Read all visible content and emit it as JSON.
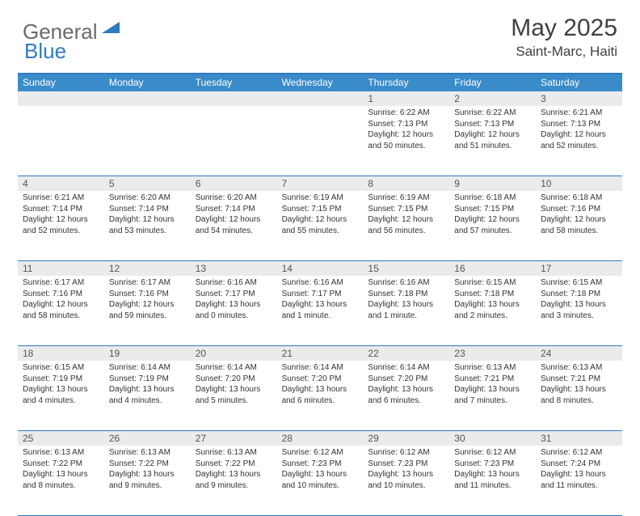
{
  "logo": {
    "general": "General",
    "blue": "Blue"
  },
  "title": "May 2025",
  "location": "Saint-Marc, Haiti",
  "colors": {
    "header_bg": "#3a8bc9",
    "border": "#2f7bbf",
    "daynum_bg": "#ebebeb",
    "text": "#333333"
  },
  "day_names": [
    "Sunday",
    "Monday",
    "Tuesday",
    "Wednesday",
    "Thursday",
    "Friday",
    "Saturday"
  ],
  "weeks": [
    [
      {
        "day": "",
        "lines": [
          "",
          "",
          "",
          ""
        ]
      },
      {
        "day": "",
        "lines": [
          "",
          "",
          "",
          ""
        ]
      },
      {
        "day": "",
        "lines": [
          "",
          "",
          "",
          ""
        ]
      },
      {
        "day": "",
        "lines": [
          "",
          "",
          "",
          ""
        ]
      },
      {
        "day": "1",
        "lines": [
          "Sunrise: 6:22 AM",
          "Sunset: 7:13 PM",
          "Daylight: 12 hours",
          "and 50 minutes."
        ]
      },
      {
        "day": "2",
        "lines": [
          "Sunrise: 6:22 AM",
          "Sunset: 7:13 PM",
          "Daylight: 12 hours",
          "and 51 minutes."
        ]
      },
      {
        "day": "3",
        "lines": [
          "Sunrise: 6:21 AM",
          "Sunset: 7:13 PM",
          "Daylight: 12 hours",
          "and 52 minutes."
        ]
      }
    ],
    [
      {
        "day": "4",
        "lines": [
          "Sunrise: 6:21 AM",
          "Sunset: 7:14 PM",
          "Daylight: 12 hours",
          "and 52 minutes."
        ]
      },
      {
        "day": "5",
        "lines": [
          "Sunrise: 6:20 AM",
          "Sunset: 7:14 PM",
          "Daylight: 12 hours",
          "and 53 minutes."
        ]
      },
      {
        "day": "6",
        "lines": [
          "Sunrise: 6:20 AM",
          "Sunset: 7:14 PM",
          "Daylight: 12 hours",
          "and 54 minutes."
        ]
      },
      {
        "day": "7",
        "lines": [
          "Sunrise: 6:19 AM",
          "Sunset: 7:15 PM",
          "Daylight: 12 hours",
          "and 55 minutes."
        ]
      },
      {
        "day": "8",
        "lines": [
          "Sunrise: 6:19 AM",
          "Sunset: 7:15 PM",
          "Daylight: 12 hours",
          "and 56 minutes."
        ]
      },
      {
        "day": "9",
        "lines": [
          "Sunrise: 6:18 AM",
          "Sunset: 7:15 PM",
          "Daylight: 12 hours",
          "and 57 minutes."
        ]
      },
      {
        "day": "10",
        "lines": [
          "Sunrise: 6:18 AM",
          "Sunset: 7:16 PM",
          "Daylight: 12 hours",
          "and 58 minutes."
        ]
      }
    ],
    [
      {
        "day": "11",
        "lines": [
          "Sunrise: 6:17 AM",
          "Sunset: 7:16 PM",
          "Daylight: 12 hours",
          "and 58 minutes."
        ]
      },
      {
        "day": "12",
        "lines": [
          "Sunrise: 6:17 AM",
          "Sunset: 7:16 PM",
          "Daylight: 12 hours",
          "and 59 minutes."
        ]
      },
      {
        "day": "13",
        "lines": [
          "Sunrise: 6:16 AM",
          "Sunset: 7:17 PM",
          "Daylight: 13 hours",
          "and 0 minutes."
        ]
      },
      {
        "day": "14",
        "lines": [
          "Sunrise: 6:16 AM",
          "Sunset: 7:17 PM",
          "Daylight: 13 hours",
          "and 1 minute."
        ]
      },
      {
        "day": "15",
        "lines": [
          "Sunrise: 6:16 AM",
          "Sunset: 7:18 PM",
          "Daylight: 13 hours",
          "and 1 minute."
        ]
      },
      {
        "day": "16",
        "lines": [
          "Sunrise: 6:15 AM",
          "Sunset: 7:18 PM",
          "Daylight: 13 hours",
          "and 2 minutes."
        ]
      },
      {
        "day": "17",
        "lines": [
          "Sunrise: 6:15 AM",
          "Sunset: 7:18 PM",
          "Daylight: 13 hours",
          "and 3 minutes."
        ]
      }
    ],
    [
      {
        "day": "18",
        "lines": [
          "Sunrise: 6:15 AM",
          "Sunset: 7:19 PM",
          "Daylight: 13 hours",
          "and 4 minutes."
        ]
      },
      {
        "day": "19",
        "lines": [
          "Sunrise: 6:14 AM",
          "Sunset: 7:19 PM",
          "Daylight: 13 hours",
          "and 4 minutes."
        ]
      },
      {
        "day": "20",
        "lines": [
          "Sunrise: 6:14 AM",
          "Sunset: 7:20 PM",
          "Daylight: 13 hours",
          "and 5 minutes."
        ]
      },
      {
        "day": "21",
        "lines": [
          "Sunrise: 6:14 AM",
          "Sunset: 7:20 PM",
          "Daylight: 13 hours",
          "and 6 minutes."
        ]
      },
      {
        "day": "22",
        "lines": [
          "Sunrise: 6:14 AM",
          "Sunset: 7:20 PM",
          "Daylight: 13 hours",
          "and 6 minutes."
        ]
      },
      {
        "day": "23",
        "lines": [
          "Sunrise: 6:13 AM",
          "Sunset: 7:21 PM",
          "Daylight: 13 hours",
          "and 7 minutes."
        ]
      },
      {
        "day": "24",
        "lines": [
          "Sunrise: 6:13 AM",
          "Sunset: 7:21 PM",
          "Daylight: 13 hours",
          "and 8 minutes."
        ]
      }
    ],
    [
      {
        "day": "25",
        "lines": [
          "Sunrise: 6:13 AM",
          "Sunset: 7:22 PM",
          "Daylight: 13 hours",
          "and 8 minutes."
        ]
      },
      {
        "day": "26",
        "lines": [
          "Sunrise: 6:13 AM",
          "Sunset: 7:22 PM",
          "Daylight: 13 hours",
          "and 9 minutes."
        ]
      },
      {
        "day": "27",
        "lines": [
          "Sunrise: 6:13 AM",
          "Sunset: 7:22 PM",
          "Daylight: 13 hours",
          "and 9 minutes."
        ]
      },
      {
        "day": "28",
        "lines": [
          "Sunrise: 6:12 AM",
          "Sunset: 7:23 PM",
          "Daylight: 13 hours",
          "and 10 minutes."
        ]
      },
      {
        "day": "29",
        "lines": [
          "Sunrise: 6:12 AM",
          "Sunset: 7:23 PM",
          "Daylight: 13 hours",
          "and 10 minutes."
        ]
      },
      {
        "day": "30",
        "lines": [
          "Sunrise: 6:12 AM",
          "Sunset: 7:23 PM",
          "Daylight: 13 hours",
          "and 11 minutes."
        ]
      },
      {
        "day": "31",
        "lines": [
          "Sunrise: 6:12 AM",
          "Sunset: 7:24 PM",
          "Daylight: 13 hours",
          "and 11 minutes."
        ]
      }
    ]
  ]
}
